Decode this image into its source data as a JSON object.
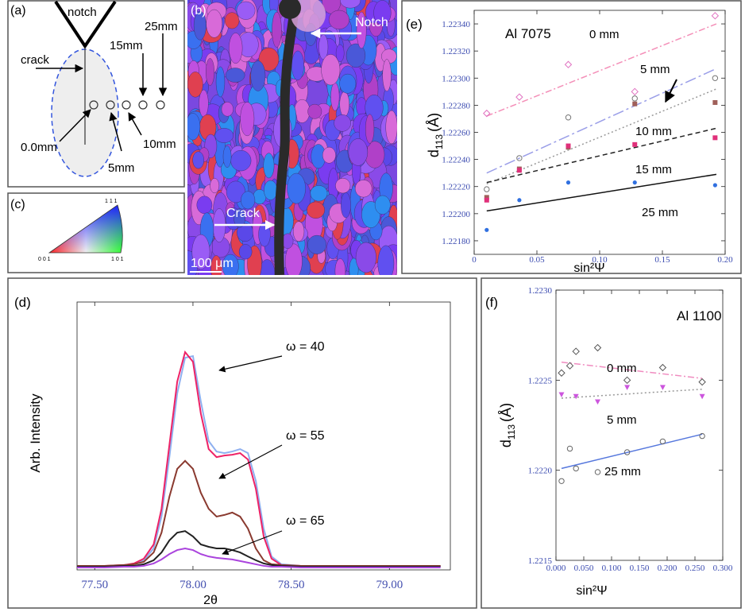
{
  "panel_a": {
    "label": "(a)",
    "notch": "notch",
    "crack": "crack",
    "d25": "25mm",
    "d15": "15mm",
    "d0": "0.0mm",
    "d10": "10mm",
    "d5": "5mm"
  },
  "panel_b": {
    "label": "(b)",
    "notch": "Notch",
    "crack": "Crack",
    "scale": "100 μm"
  },
  "panel_c": {
    "label": "(c)",
    "c111": "1 1 1",
    "c001": "0 0 1",
    "c101": "1 0 1"
  },
  "chart_data": [
    {
      "type": "line",
      "panel": "(d)",
      "xlabel": "2θ",
      "ylabel": "Arb. Intensity",
      "xlim": [
        77.41,
        79.31
      ],
      "ylim": [
        0,
        100
      ],
      "xticks": [
        {
          "value": 77.5,
          "label": "77.50"
        },
        {
          "value": 78,
          "label": "78.00"
        },
        {
          "value": 78.5,
          "label": "78.50"
        },
        {
          "value": 79,
          "label": "79.00"
        }
      ],
      "x": [
        77.41,
        77.55,
        77.65,
        77.7,
        77.75,
        77.8,
        77.84,
        77.88,
        77.92,
        77.96,
        78,
        78.04,
        78.08,
        78.12,
        78.16,
        78.2,
        78.24,
        78.28,
        78.32,
        78.36,
        78.4,
        78.45,
        78.55,
        78.7,
        78.85,
        79,
        79.15,
        79.26
      ],
      "series": [
        {
          "color": "#8fb0f0",
          "values": [
            1.2,
            1.2,
            1.5,
            2.1,
            3.6,
            8.0,
            19.9,
            42.1,
            65.9,
            79.2,
            79.8,
            62.9,
            48.1,
            44.2,
            43.6,
            44.2,
            45.1,
            43.6,
            33.2,
            15.4,
            5.0,
            2.1,
            1.5,
            1.5,
            1.5,
            1.5,
            1.5,
            1.5
          ]
        },
        {
          "name": "ω = 40",
          "color": "#ee2266",
          "values": [
            1.5,
            1.5,
            1.8,
            2.4,
            4.2,
            9.5,
            22.8,
            46.6,
            70.3,
            81.3,
            77.7,
            58.4,
            45.1,
            42.1,
            42.7,
            43.0,
            43.6,
            41.2,
            30.3,
            12.5,
            4.2,
            1.8,
            1.5,
            1.5,
            1.5,
            1.5,
            1.5,
            1.5
          ]
        },
        {
          "name": "ω = 55",
          "color": "#8a3a30",
          "values": [
            1.5,
            1.5,
            1.8,
            2.1,
            3.0,
            6.5,
            13.9,
            27.3,
            37.7,
            40.7,
            37.7,
            28.8,
            22.8,
            19.9,
            20.5,
            21.4,
            19.9,
            15.4,
            8.0,
            3.6,
            2.1,
            1.8,
            1.5,
            1.5,
            1.5,
            1.5,
            1.5,
            1.5
          ]
        },
        {
          "name": "ω = 65",
          "color": "#222222",
          "values": [
            1.2,
            1.2,
            1.5,
            1.5,
            2.1,
            3.6,
            6.5,
            11.0,
            13.9,
            14.5,
            12.5,
            9.5,
            8.6,
            8.0,
            8.0,
            7.4,
            6.5,
            5.0,
            3.6,
            2.4,
            1.8,
            1.5,
            1.2,
            1.2,
            1.2,
            1.2,
            1.2,
            1.2
          ]
        },
        {
          "color": "#aa44dd",
          "values": [
            0.9,
            0.9,
            1.2,
            1.2,
            1.5,
            2.4,
            3.9,
            5.9,
            7.4,
            8.0,
            7.4,
            5.9,
            5.0,
            4.5,
            4.2,
            3.9,
            3.3,
            2.7,
            2.1,
            1.5,
            1.2,
            1.2,
            0.9,
            0.9,
            0.9,
            0.9,
            0.9,
            0.9
          ]
        }
      ]
    },
    {
      "type": "scatter",
      "panel": "(e)",
      "annotation": "Al 7075",
      "xlabel": "sin²Ψ",
      "ylabel": {
        "main": "d",
        "sub": "113",
        "unit": "(Å)"
      },
      "xlim": [
        0,
        0.2
      ],
      "ylim": [
        1.2217,
        1.2235
      ],
      "xticks": [
        0,
        0.05,
        {
          "value": 0.1,
          "label": "0.10"
        },
        0.15,
        {
          "value": 0.2,
          "label": "0.20"
        }
      ],
      "yticks": [
        {
          "value": 1.2218,
          "label": "1.22180"
        },
        {
          "value": 1.222,
          "label": "1.22200"
        },
        {
          "value": 1.2222,
          "label": "1.22220"
        },
        {
          "value": 1.2224,
          "label": "1.22240"
        },
        {
          "value": 1.2226,
          "label": "1.22260"
        },
        {
          "value": 1.2228,
          "label": "1.22280"
        },
        {
          "value": 1.223,
          "label": "1.22300"
        },
        {
          "value": 1.2232,
          "label": "1.22320"
        },
        {
          "value": 1.2234,
          "label": "1.22340"
        }
      ],
      "series": [
        {
          "name": "0 mm",
          "marker": "diamond-open",
          "color": "#e070c0",
          "line_color": "#f48fb8",
          "linestyle": "dashdot",
          "x": [
            0.01,
            0.036,
            0.075,
            0.128,
            0.192
          ],
          "values": [
            1.22274,
            1.22286,
            1.2231,
            1.2229,
            1.22346
          ],
          "fit": {
            "x": [
              0.01,
              0.193
            ],
            "values": [
              1.22272,
              1.2234
            ]
          }
        },
        {
          "name": "5 mm",
          "marker": "circle-open",
          "color": "#777777",
          "line_color": "#9a9ee8",
          "linestyle": "longdashdot",
          "x": [
            0.01,
            0.036,
            0.075,
            0.128,
            0.192
          ],
          "values": [
            1.22218,
            1.22241,
            1.22271,
            1.22285,
            1.223
          ],
          "fit": {
            "x": [
              0.01,
              0.193
            ],
            "values": [
              1.2223,
              1.22307
            ]
          }
        },
        {
          "name": "10 mm",
          "marker": "square",
          "color": "#a0605a",
          "line_color": "#999999",
          "linestyle": "dotted",
          "x": [
            0.01,
            0.036,
            0.075,
            0.128,
            0.192
          ],
          "values": [
            1.22212,
            1.22233,
            1.22249,
            1.22281,
            1.22282
          ],
          "fit": {
            "x": [
              0.01,
              0.193
            ],
            "values": [
              1.22222,
              1.22292
            ]
          }
        },
        {
          "name": "15 mm",
          "marker": "square",
          "color": "#e0307a",
          "line_color": "#222222",
          "linestyle": "dashed",
          "x": [
            0.01,
            0.036,
            0.075,
            0.128,
            0.192
          ],
          "values": [
            1.2221,
            1.22232,
            1.2225,
            1.22251,
            1.22256
          ],
          "fit": {
            "x": [
              0.01,
              0.193
            ],
            "values": [
              1.22223,
              1.22263
            ]
          }
        },
        {
          "name": "25 mm",
          "marker": "dot",
          "color": "#3070e0",
          "line_color": "#111111",
          "linestyle": "solid",
          "x": [
            0.01,
            0.036,
            0.075,
            0.128,
            0.192
          ],
          "values": [
            1.22188,
            1.2221,
            1.22223,
            1.22223,
            1.22221
          ],
          "fit": {
            "x": [
              0.01,
              0.193
            ],
            "values": [
              1.22202,
              1.22229
            ]
          }
        }
      ]
    },
    {
      "type": "scatter",
      "panel": "(f)",
      "annotation": "Al 1100",
      "xlabel": "sin²Ψ",
      "ylabel": {
        "main": "d",
        "sub": "113",
        "unit": "(Å)"
      },
      "xlim": [
        0,
        0.3
      ],
      "ylim": [
        1.2215,
        1.223
      ],
      "xticks": [
        {
          "value": 0,
          "label": "0.000"
        },
        {
          "value": 0.05,
          "label": "0.050"
        },
        {
          "value": 0.1,
          "label": "0.100"
        },
        {
          "value": 0.15,
          "label": "0.150"
        },
        {
          "value": 0.2,
          "label": "0.200"
        },
        {
          "value": 0.25,
          "label": "0.250"
        },
        {
          "value": 0.3,
          "label": "0.300"
        }
      ],
      "yticks": [
        1.2215,
        {
          "value": 1.222,
          "label": "1.2220"
        },
        1.2225,
        {
          "value": 1.223,
          "label": "1.2230"
        }
      ],
      "series": [
        {
          "name": "0 mm",
          "marker": "diamond-open",
          "color": "#555555",
          "line_color": "#f08cc0",
          "linestyle": "dashdot",
          "x": [
            0.01,
            0.025,
            0.036,
            0.075,
            0.128,
            0.192,
            0.263
          ],
          "values": [
            1.22254,
            1.22258,
            1.22266,
            1.22268,
            1.2225,
            1.22257,
            1.22249
          ],
          "fit": {
            "x": [
              0.01,
              0.263
            ],
            "values": [
              1.2226,
              1.22251
            ]
          }
        },
        {
          "name": "5 mm",
          "marker": "triangle-down",
          "color": "#cc55dd",
          "line_color": "#999999",
          "linestyle": "dotted",
          "x": [
            0.01,
            0.036,
            0.075,
            0.128,
            0.192,
            0.263
          ],
          "values": [
            1.22242,
            1.22241,
            1.22238,
            1.22246,
            1.22246,
            1.22241
          ],
          "fit": {
            "x": [
              0.01,
              0.263
            ],
            "values": [
              1.2224,
              1.22245
            ]
          }
        },
        {
          "name": "25 mm",
          "marker": "circle-open",
          "color": "#666666",
          "line_color": "#5577dd",
          "linestyle": "solid",
          "x": [
            0.01,
            0.025,
            0.036,
            0.075,
            0.128,
            0.192,
            0.263
          ],
          "values": [
            1.22194,
            1.22212,
            1.22201,
            1.22199,
            1.2221,
            1.22216,
            1.22219
          ],
          "fit": {
            "x": [
              0.01,
              0.263
            ],
            "values": [
              1.22201,
              1.2222
            ]
          }
        }
      ]
    }
  ]
}
